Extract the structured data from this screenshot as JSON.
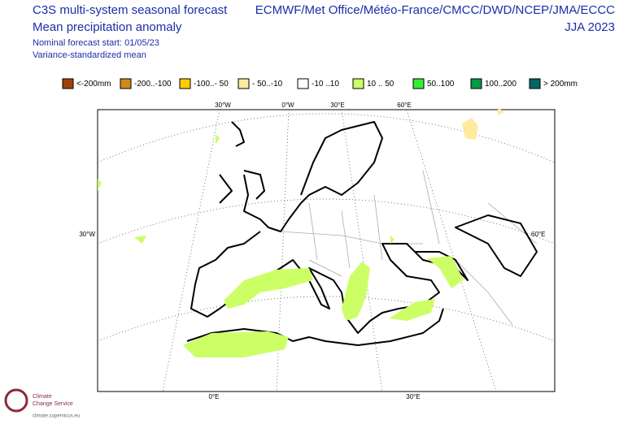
{
  "header": {
    "title_left": "C3S multi-system seasonal forecast",
    "title_left_2": "Mean precipitation anomaly",
    "note_1": "Nominal forecast start: 01/05/23",
    "note_2": "Variance-standardized mean",
    "title_right": "ECMWF/Met Office/Météo-France/CMCC/DWD/NCEP/JMA/ECCC",
    "period": "JJA 2023"
  },
  "legend": [
    {
      "label": "<-200mm",
      "color": "#a0410d"
    },
    {
      "label": "-200..-100",
      "color": "#cc8a1a"
    },
    {
      "label": "-100..- 50",
      "color": "#ffcc00"
    },
    {
      "label": "- 50..-10",
      "color": "#ffeaa0"
    },
    {
      "label": "-10 ..10",
      "color": "#ffffff"
    },
    {
      "label": "10 .. 50",
      "color": "#ccff66"
    },
    {
      "label": "50..100",
      "color": "#33ee33"
    },
    {
      "label": "100..200",
      "color": "#009944"
    },
    {
      "label": "> 200mm",
      "color": "#006666"
    }
  ],
  "map": {
    "graticule_top": [
      "30°W",
      "0°W",
      "30°E",
      "60°E"
    ],
    "graticule_left": "30°W",
    "graticule_right": "60°E",
    "graticule_bottom": [
      "0°E",
      "30°E"
    ]
  },
  "logo": {
    "name_1": "Climate",
    "name_2": "Change Service",
    "url": "climate.copernicus.eu"
  }
}
